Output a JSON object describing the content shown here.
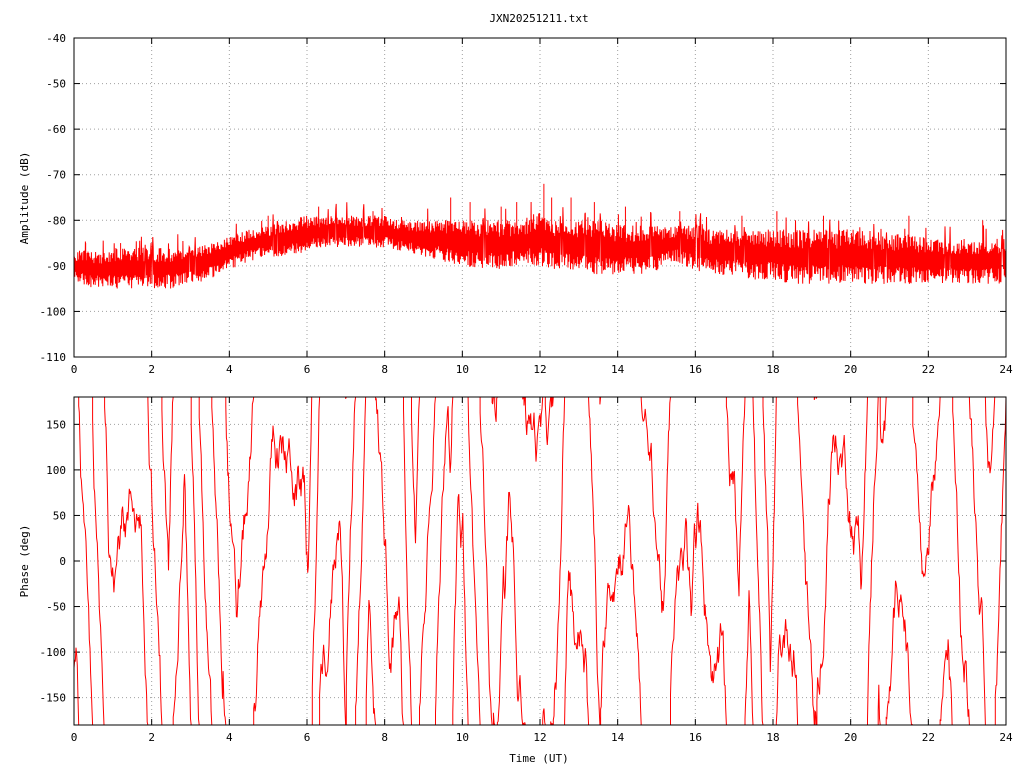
{
  "title": "JXN20251211.txt",
  "colors": {
    "series": "#ff0000",
    "frame": "#000000",
    "grid": "#a0a0a0",
    "background": "#ffffff"
  },
  "chart_data": [
    {
      "type": "line",
      "xlabel": "",
      "ylabel": "Amplitude (dB)",
      "xlim": [
        0,
        24
      ],
      "ylim": [
        -110,
        -40
      ],
      "xticks": [
        0,
        2,
        4,
        6,
        8,
        10,
        12,
        14,
        16,
        18,
        20,
        22,
        24
      ],
      "yticks": [
        -110,
        -100,
        -90,
        -80,
        -70,
        -60,
        -50,
        -40
      ],
      "grid": true,
      "legend": "none",
      "series": [
        {
          "band": "upper/lower envelope of a dense noisy trace",
          "x": [
            0,
            0.5,
            1,
            1.5,
            2,
            2.5,
            3,
            3.5,
            4,
            4.5,
            5,
            5.5,
            6,
            6.5,
            7,
            7.5,
            8,
            8.5,
            9,
            9.5,
            10,
            10.5,
            11,
            11.5,
            12,
            12.5,
            13,
            13.5,
            14,
            14.5,
            15,
            15.5,
            16,
            16.5,
            17,
            17.5,
            18,
            18.5,
            19,
            19.5,
            20,
            20.5,
            21,
            21.5,
            22,
            22.5,
            23,
            23.5,
            24
          ],
          "y_high": [
            -86,
            -87,
            -86,
            -86,
            -86,
            -86,
            -86,
            -85,
            -83,
            -82,
            -81,
            -80,
            -79,
            -79,
            -79,
            -79,
            -79,
            -80,
            -80,
            -80,
            -80,
            -80,
            -80,
            -80,
            -78,
            -80,
            -80,
            -80,
            -81,
            -81,
            -81,
            -81,
            -81,
            -82,
            -82,
            -82,
            -82,
            -82,
            -82,
            -82,
            -82,
            -82,
            -83,
            -83,
            -84,
            -84,
            -84,
            -84,
            -84
          ],
          "y_low": [
            -94,
            -95,
            -95,
            -95,
            -95,
            -95,
            -94,
            -93,
            -91,
            -89,
            -88,
            -88,
            -87,
            -86,
            -86,
            -86,
            -86,
            -87,
            -88,
            -89,
            -90,
            -91,
            -91,
            -90,
            -90,
            -91,
            -91,
            -92,
            -92,
            -92,
            -91,
            -89,
            -91,
            -92,
            -92,
            -93,
            -93,
            -94,
            -94,
            -94,
            -94,
            -94,
            -94,
            -94,
            -94,
            -94,
            -94,
            -94,
            -94
          ],
          "spikes": [
            [
              0.3,
              -85
            ],
            [
              1.2,
              -85
            ],
            [
              5.0,
              -79
            ],
            [
              6.3,
              -77
            ],
            [
              7.7,
              -78
            ],
            [
              9.7,
              -75
            ],
            [
              10.2,
              -76
            ],
            [
              11.0,
              -77
            ],
            [
              11.4,
              -76
            ],
            [
              12.1,
              -72
            ],
            [
              12.3,
              -75
            ],
            [
              12.8,
              -75
            ],
            [
              13.4,
              -76
            ],
            [
              14.2,
              -77
            ],
            [
              15.6,
              -78
            ],
            [
              17.2,
              -79
            ],
            [
              18.1,
              -78
            ],
            [
              19.3,
              -79
            ],
            [
              21.5,
              -79
            ],
            [
              23.4,
              -80
            ]
          ]
        }
      ]
    },
    {
      "type": "line",
      "xlabel": "Time (UT)",
      "ylabel": "Phase (deg)",
      "xlim": [
        0,
        24
      ],
      "ylim": [
        -180,
        180
      ],
      "xticks": [
        0,
        2,
        4,
        6,
        8,
        10,
        12,
        14,
        16,
        18,
        20,
        22,
        24
      ],
      "yticks": [
        -150,
        -100,
        -50,
        0,
        50,
        100,
        150
      ],
      "grid": true,
      "legend": "none",
      "series": [
        {
          "x_range": [
            0,
            24
          ],
          "points": 1400,
          "behavior": "rapidly wrapping phase between -180 and 180"
        }
      ]
    }
  ]
}
